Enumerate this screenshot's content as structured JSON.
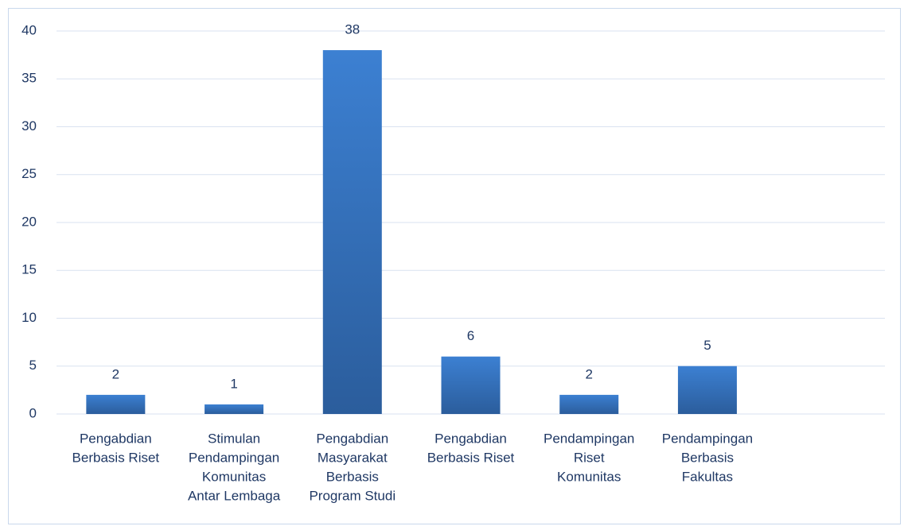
{
  "chart_data": {
    "type": "bar",
    "categories": [
      [
        "Pengabdian",
        "Berbasis Riset"
      ],
      [
        "Stimulan",
        "Pendampingan",
        "Komunitas",
        "Antar Lembaga"
      ],
      [
        "Pengabdian",
        "Masyarakat",
        "Berbasis",
        "Program Studi"
      ],
      [
        "Pengabdian",
        "Berbasis Riset"
      ],
      [
        "Pendampingan",
        "Riset",
        "Komunitas"
      ],
      [
        "Pendampingan",
        "Berbasis",
        "Fakultas"
      ],
      null
    ],
    "values": [
      2,
      1,
      38,
      6,
      2,
      5,
      null
    ],
    "color": "#2e65a8",
    "ylim": [
      0,
      40
    ],
    "yticks": [
      0,
      5,
      10,
      15,
      20,
      25,
      30,
      35,
      40
    ],
    "grid": true
  }
}
